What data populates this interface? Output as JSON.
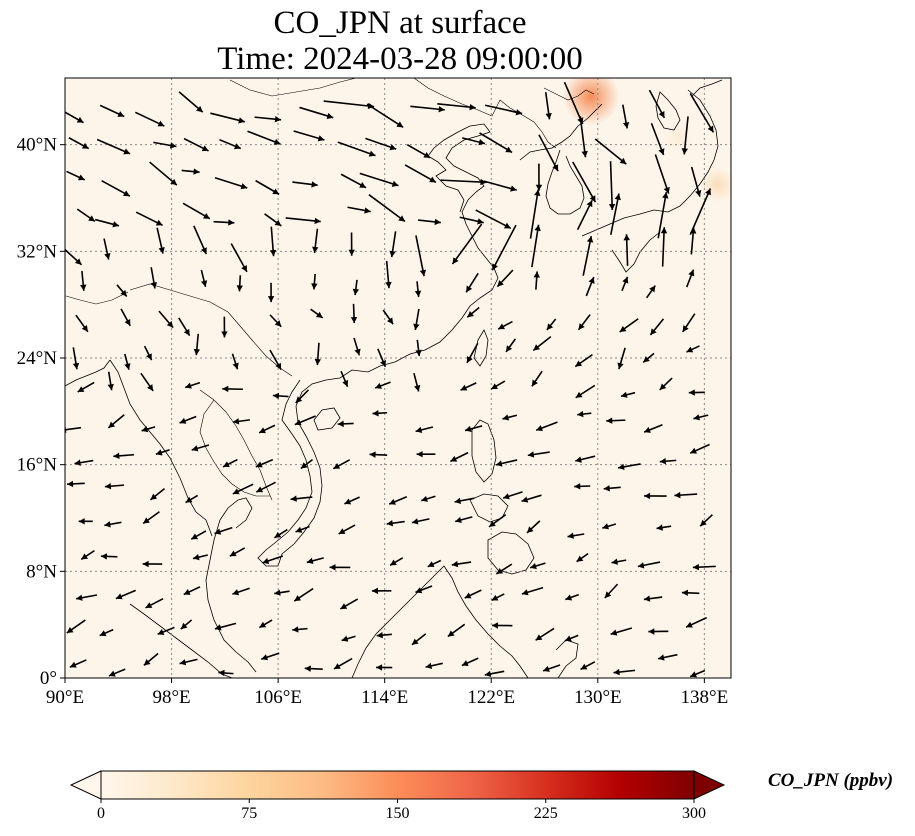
{
  "title": {
    "line1": "CO_JPN at surface",
    "line2": "Time: 2024-03-28 09:00:00"
  },
  "map": {
    "projection": "PlateCarree",
    "lon_range": [
      90,
      140
    ],
    "lat_range": [
      0,
      45
    ],
    "gridlines": "dotted",
    "field_background_color": "#fdf5ea",
    "lon_ticks": [
      {
        "value": 90,
        "label": "90°E"
      },
      {
        "value": 98,
        "label": "98°E"
      },
      {
        "value": 106,
        "label": "106°E"
      },
      {
        "value": 114,
        "label": "114°E"
      },
      {
        "value": 122,
        "label": "122°E"
      },
      {
        "value": 130,
        "label": "130°E"
      },
      {
        "value": 138,
        "label": "138°E"
      }
    ],
    "lat_ticks": [
      {
        "value": 0,
        "label": "0°"
      },
      {
        "value": 8,
        "label": "8°N"
      },
      {
        "value": 16,
        "label": "16°N"
      },
      {
        "value": 24,
        "label": "24°N"
      },
      {
        "value": 32,
        "label": "32°N"
      },
      {
        "value": 40,
        "label": "40°N"
      }
    ],
    "hotspots": [
      {
        "lon": 129.5,
        "lat": 43.6,
        "value_ppbv": 110,
        "color": "#f5874f"
      },
      {
        "lon": 139.0,
        "lat": 37.0,
        "value_ppbv": 45,
        "color": "#fcdcb8"
      },
      {
        "lon": 136.0,
        "lat": 40.5,
        "value_ppbv": 25,
        "color": "#fdebd5"
      }
    ]
  },
  "colorbar": {
    "label": "CO_JPN (ppbv)",
    "min": 0,
    "max": 300,
    "extend": "both",
    "colormap": "OrRd",
    "ticks": [
      {
        "value": 0,
        "label": "0"
      },
      {
        "value": 75,
        "label": "75"
      },
      {
        "value": 150,
        "label": "150"
      },
      {
        "value": 225,
        "label": "225"
      },
      {
        "value": 300,
        "label": "300"
      }
    ],
    "colors": [
      "#fff7ec",
      "#fee8c8",
      "#fdd49e",
      "#fdbb84",
      "#fc8d59",
      "#ef6548",
      "#d7301f",
      "#b30000",
      "#7f0000"
    ]
  }
}
